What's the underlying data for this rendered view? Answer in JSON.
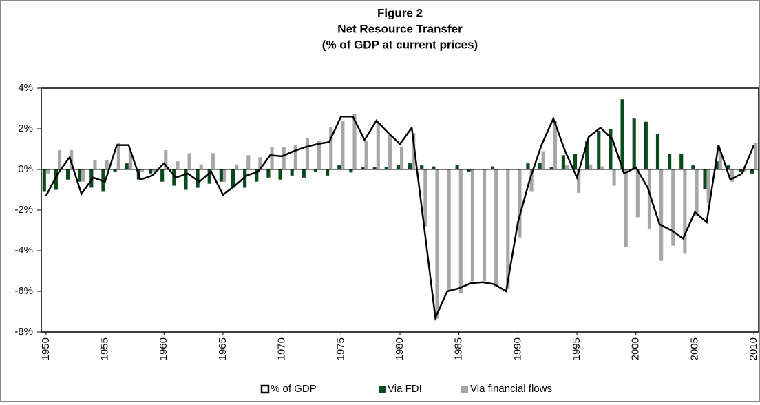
{
  "chart_data": {
    "type": "bar-line",
    "title_lines": [
      "Figure 2",
      "Net Resource Transfer",
      "(% of GDP at current prices)"
    ],
    "x": [
      1950,
      1951,
      1952,
      1953,
      1954,
      1955,
      1956,
      1957,
      1958,
      1959,
      1960,
      1961,
      1962,
      1963,
      1964,
      1965,
      1966,
      1967,
      1968,
      1969,
      1970,
      1971,
      1972,
      1973,
      1974,
      1975,
      1976,
      1977,
      1978,
      1979,
      1980,
      1981,
      1982,
      1983,
      1984,
      1985,
      1986,
      1987,
      1988,
      1989,
      1990,
      1991,
      1992,
      1993,
      1994,
      1995,
      1996,
      1997,
      1998,
      1999,
      2000,
      2001,
      2002,
      2003,
      2004,
      2005,
      2006,
      2007,
      2008,
      2009,
      2010
    ],
    "xlim": [
      1949.6,
      2010.4
    ],
    "xticks": [
      1950,
      1955,
      1960,
      1965,
      1970,
      1975,
      1980,
      1985,
      1990,
      1995,
      2000,
      2005,
      2010
    ],
    "ylim": [
      -8,
      4
    ],
    "yticks": [
      {
        "value": -8,
        "label": "-8%"
      },
      {
        "value": -6,
        "label": "-6%"
      },
      {
        "value": -4,
        "label": "-4%"
      },
      {
        "value": -2,
        "label": "-2%"
      },
      {
        "value": 0,
        "label": "0%"
      },
      {
        "value": 2,
        "label": "2%"
      },
      {
        "value": 4,
        "label": "4%"
      }
    ],
    "series": [
      {
        "name": "% of GDP",
        "kind": "line",
        "color": "#000000",
        "values": [
          -1.3,
          -0.2,
          0.6,
          -1.2,
          -0.4,
          -0.6,
          1.2,
          1.2,
          -0.5,
          -0.3,
          0.3,
          -0.4,
          -0.2,
          -0.6,
          -0.1,
          -1.25,
          -0.8,
          -0.3,
          -0.1,
          0.7,
          0.65,
          0.9,
          1.1,
          1.25,
          1.35,
          2.6,
          2.6,
          1.45,
          2.4,
          1.8,
          1.25,
          2.05,
          -2.6,
          -7.3,
          -6.0,
          -5.85,
          -5.6,
          -5.55,
          -5.65,
          -6.0,
          -2.6,
          -0.5,
          1.2,
          2.5,
          0.9,
          -0.4,
          1.6,
          2.05,
          1.5,
          -0.2,
          0.1,
          -0.9,
          -2.7,
          -3.0,
          -3.4,
          -2.1,
          -2.6,
          1.2,
          -0.5,
          -0.2,
          1.2
        ]
      },
      {
        "name": "Via FDI",
        "kind": "bar",
        "color": "#0b4a1c",
        "values": [
          -1.1,
          -1.0,
          -0.5,
          -0.6,
          -0.9,
          -1.1,
          -0.1,
          0.3,
          -0.5,
          -0.2,
          -0.6,
          -0.8,
          -1.0,
          -0.9,
          -0.7,
          -0.6,
          -0.9,
          -0.9,
          -0.6,
          -0.4,
          -0.5,
          -0.3,
          -0.4,
          -0.1,
          -0.3,
          0.2,
          -0.15,
          0.1,
          0.1,
          0.1,
          0.2,
          0.3,
          0.2,
          0.15,
          0.0,
          0.2,
          -0.1,
          0.0,
          0.15,
          0.0,
          0.0,
          0.3,
          0.3,
          0.1,
          0.7,
          0.75,
          1.4,
          1.9,
          2.0,
          3.45,
          2.5,
          2.35,
          1.75,
          0.75,
          0.75,
          0.2,
          -0.95,
          0.4,
          0.2,
          -0.1,
          -0.2
        ]
      },
      {
        "name": "Via financial flows",
        "kind": "bar",
        "color": "#a6a6a6",
        "values": [
          -0.2,
          0.95,
          0.95,
          -0.6,
          0.45,
          0.45,
          1.3,
          0.9,
          -0.1,
          -0.1,
          0.95,
          0.4,
          0.8,
          0.25,
          0.8,
          -0.6,
          0.25,
          0.7,
          0.6,
          1.1,
          1.1,
          1.2,
          1.55,
          1.4,
          2.1,
          2.4,
          2.75,
          1.4,
          2.3,
          1.7,
          1.1,
          1.8,
          -2.8,
          -7.35,
          -6.0,
          -6.1,
          -5.5,
          -5.5,
          -5.8,
          -5.9,
          -3.35,
          -1.1,
          0.9,
          2.4,
          0.2,
          -1.15,
          0.25,
          0.15,
          -0.8,
          -3.8,
          -2.35,
          -2.95,
          -4.5,
          -3.75,
          -4.15,
          -2.3,
          -1.65,
          0.85,
          -0.6,
          -0.1,
          1.3
        ]
      }
    ]
  }
}
